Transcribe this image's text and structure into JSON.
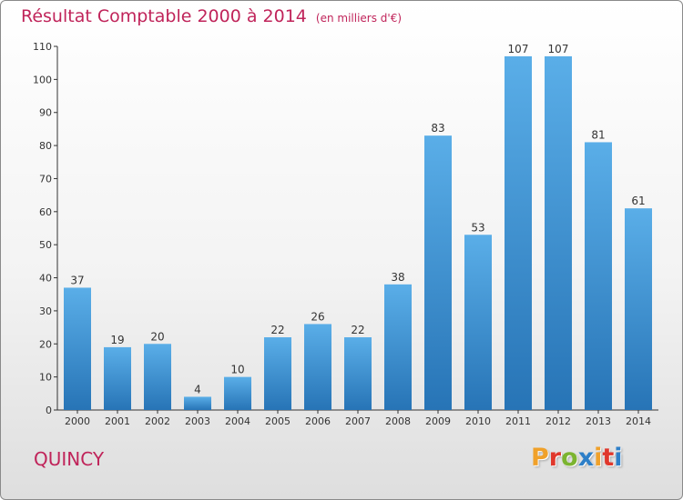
{
  "title": "Résultat Comptable 2000 à 2014",
  "unit": "(en milliers d'€)",
  "commune": "QUINCY",
  "logo": "Proxiti",
  "colors": {
    "title": "#c0245a",
    "bar_light": "#5aaee8",
    "bar_dark": "#2774b6",
    "logo_letters": [
      "#f0a12a",
      "#e0382c",
      "#7cb430",
      "#2d7fc8",
      "#f0a12a",
      "#e0382c",
      "#2d7fc8"
    ]
  },
  "chart_data": {
    "type": "bar",
    "title": "Résultat Comptable 2000 à 2014",
    "subtitle": "(en milliers d'€)",
    "categories": [
      "2000",
      "2001",
      "2002",
      "2003",
      "2004",
      "2005",
      "2006",
      "2007",
      "2008",
      "2009",
      "2010",
      "2011",
      "2012",
      "2013",
      "2014"
    ],
    "values": [
      37,
      19,
      20,
      4,
      10,
      22,
      26,
      22,
      38,
      83,
      53,
      107,
      107,
      81,
      61
    ],
    "ylim": [
      0,
      110
    ],
    "yticks": [
      0,
      10,
      20,
      30,
      40,
      50,
      60,
      70,
      80,
      90,
      100,
      110
    ],
    "grid": false,
    "data_labels": true
  }
}
